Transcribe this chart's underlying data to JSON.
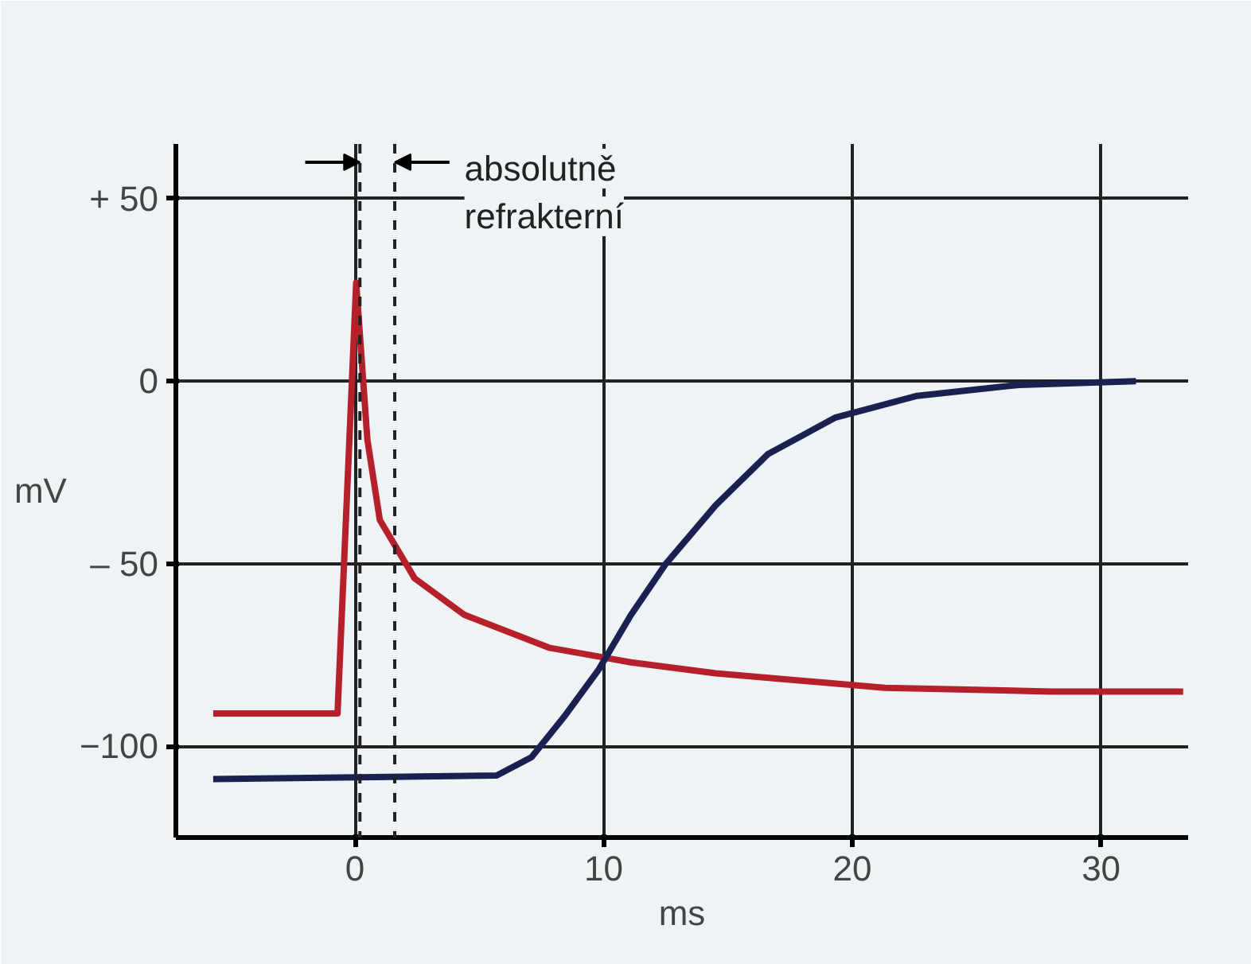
{
  "chart_data": {
    "type": "line",
    "xlabel": "ms",
    "ylabel": "mV",
    "xlim": [
      -7.2,
      33.5
    ],
    "ylim": [
      -125,
      65
    ],
    "xticks": [
      0,
      10,
      20,
      30
    ],
    "yticks": [
      {
        "value": 50,
        "label": "+ 50"
      },
      0,
      {
        "value": -50,
        "label": "– 50"
      },
      -100
    ],
    "grid": true,
    "marker": "none",
    "line_style": "solid",
    "series": [
      {
        "color": "#b5202a",
        "x": [
          -5.7,
          -0.7,
          0.05,
          0.5,
          1,
          2.4,
          4.4,
          7.8,
          11.1,
          14.5,
          21.3,
          28,
          33.3
        ],
        "values": [
          -91,
          -91,
          27,
          -16,
          -38,
          -54,
          -64,
          -73,
          -77,
          -80,
          -84,
          -85,
          -85
        ]
      },
      {
        "color": "#1a2050",
        "x": [
          -5.7,
          5.7,
          7.1,
          8.4,
          9.8,
          11.1,
          12.5,
          14.5,
          16.6,
          19.3,
          22.6,
          26.7,
          31.4
        ],
        "values": [
          -109,
          -108,
          -103,
          -92,
          -79,
          -64,
          -50,
          -34,
          -20,
          -10,
          -4,
          -1,
          0
        ]
      }
    ],
    "ref_lines": [
      {
        "axis": "x",
        "value": 0.2,
        "line_style": "dashed"
      },
      {
        "axis": "x",
        "value": 1.6,
        "line_style": "dashed"
      }
    ],
    "annotations": [
      {
        "text": "absolutně refrakterní",
        "x": 1.6,
        "y": 60
      }
    ]
  }
}
